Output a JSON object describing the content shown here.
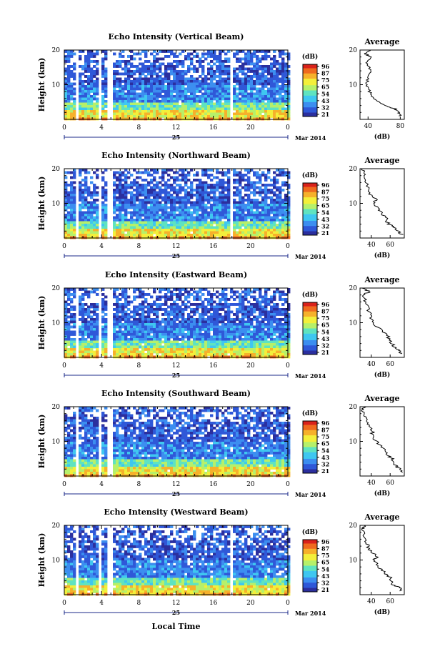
{
  "figure": {
    "bottom_label": "Local Time",
    "date_label": "Mar 2014",
    "day_label": "25",
    "ylabel": "Height (km)",
    "avg_title": "Average",
    "avg_xlabel": "(dB)",
    "colorbar_label": "(dB)",
    "colorbar_ticks": [
      "96",
      "87",
      "75",
      "65",
      "54",
      "43",
      "32",
      "21"
    ],
    "colors": {
      "scale": [
        "#2b2f9e",
        "#2f58d8",
        "#3c8ef0",
        "#3fc7f0",
        "#5fe3c0",
        "#b6f06a",
        "#f3ef3b",
        "#f6b12b",
        "#ef6a1f",
        "#d9221b"
      ]
    }
  },
  "chart_data": [
    {
      "type": "heatmap",
      "title": "Echo Intensity (Vertical Beam)",
      "xlabel": "",
      "ylabel": "Height (km)",
      "xlim": [
        0,
        24
      ],
      "ylim": [
        0,
        20
      ],
      "x_ticks": [
        "0",
        "4",
        "8",
        "12",
        "16",
        "20",
        "0"
      ],
      "y_ticks": [
        "20",
        "10"
      ],
      "colorbar": {
        "label": "(dB)",
        "ticks": [
          96,
          87,
          75,
          65,
          54,
          43,
          32,
          21
        ]
      },
      "data_gaps_hours": [
        [
          1.2,
          1.6
        ],
        [
          3.7,
          4.1
        ],
        [
          4.7,
          5.2
        ],
        [
          17.8,
          18.2
        ]
      ],
      "average_profile": {
        "title": "Average",
        "xlabel": "(dB)",
        "x_ticks": [
          "40",
          "80"
        ],
        "xlim": [
          30,
          85
        ],
        "y_ticks": [
          "20",
          "10"
        ],
        "ylim": [
          0,
          20
        ],
        "points": [
          [
            80,
            1
          ],
          [
            78,
            2
          ],
          [
            74,
            3
          ],
          [
            60,
            4
          ],
          [
            48,
            6
          ],
          [
            42,
            8
          ],
          [
            38,
            10
          ],
          [
            40,
            12
          ],
          [
            45,
            14
          ],
          [
            38,
            16
          ],
          [
            44,
            18
          ],
          [
            36,
            19
          ],
          [
            42,
            20
          ]
        ]
      }
    },
    {
      "type": "heatmap",
      "title": "Echo Intensity (Northward Beam)",
      "xlabel": "",
      "ylabel": "Height (km)",
      "xlim": [
        0,
        24
      ],
      "ylim": [
        0,
        20
      ],
      "x_ticks": [
        "0",
        "4",
        "8",
        "12",
        "16",
        "20",
        "0"
      ],
      "y_ticks": [
        "20",
        "10"
      ],
      "colorbar": {
        "label": "(dB)",
        "ticks": [
          96,
          87,
          75,
          65,
          54,
          43,
          32,
          21
        ]
      },
      "data_gaps_hours": [
        [
          1.2,
          1.6
        ],
        [
          3.7,
          4.1
        ],
        [
          4.7,
          5.2
        ],
        [
          17.8,
          18.2
        ]
      ],
      "average_profile": {
        "title": "Average",
        "xlabel": "(dB)",
        "x_ticks": [
          "40",
          "60"
        ],
        "xlim": [
          28,
          75
        ],
        "y_ticks": [
          "20",
          "10"
        ],
        "ylim": [
          0,
          20
        ],
        "points": [
          [
            72,
            1
          ],
          [
            68,
            2
          ],
          [
            66,
            3
          ],
          [
            58,
            4
          ],
          [
            55,
            6
          ],
          [
            48,
            8
          ],
          [
            42,
            10
          ],
          [
            45,
            11
          ],
          [
            38,
            13
          ],
          [
            35,
            16
          ],
          [
            33,
            18
          ],
          [
            30,
            20
          ]
        ]
      }
    },
    {
      "type": "heatmap",
      "title": "Echo Intensity (Eastward Beam)",
      "xlabel": "",
      "ylabel": "Height (km)",
      "xlim": [
        0,
        24
      ],
      "ylim": [
        0,
        20
      ],
      "x_ticks": [
        "0",
        "4",
        "8",
        "12",
        "16",
        "20",
        "0"
      ],
      "y_ticks": [
        "20",
        "10"
      ],
      "colorbar": {
        "label": "(dB)",
        "ticks": [
          96,
          87,
          75,
          65,
          54,
          43,
          32,
          21
        ]
      },
      "data_gaps_hours": [
        [
          1.2,
          1.6
        ],
        [
          3.7,
          4.1
        ],
        [
          4.7,
          5.2
        ]
      ],
      "average_profile": {
        "title": "Average",
        "xlabel": "(dB)",
        "x_ticks": [
          "40",
          "60"
        ],
        "xlim": [
          28,
          75
        ],
        "y_ticks": [
          "20",
          "10"
        ],
        "ylim": [
          0,
          20
        ],
        "points": [
          [
            72,
            1
          ],
          [
            70,
            2
          ],
          [
            64,
            3
          ],
          [
            60,
            5
          ],
          [
            55,
            7
          ],
          [
            45,
            9
          ],
          [
            40,
            11
          ],
          [
            38,
            13
          ],
          [
            34,
            16
          ],
          [
            32,
            18
          ],
          [
            38,
            19
          ],
          [
            30,
            20
          ]
        ]
      }
    },
    {
      "type": "heatmap",
      "title": "Echo Intensity (Southward Beam)",
      "xlabel": "",
      "ylabel": "Height (km)",
      "xlim": [
        0,
        24
      ],
      "ylim": [
        0,
        20
      ],
      "x_ticks": [
        "0",
        "4",
        "8",
        "12",
        "16",
        "20",
        "0"
      ],
      "y_ticks": [
        "20",
        "10"
      ],
      "colorbar": {
        "label": "(dB)",
        "ticks": [
          96,
          87,
          75,
          65,
          54,
          43,
          32,
          21
        ]
      },
      "data_gaps_hours": [
        [
          1.2,
          1.6
        ],
        [
          3.7,
          4.1
        ],
        [
          4.7,
          5.2
        ]
      ],
      "average_profile": {
        "title": "Average",
        "xlabel": "(dB)",
        "x_ticks": [
          "40",
          "60"
        ],
        "xlim": [
          28,
          75
        ],
        "y_ticks": [
          "20",
          "10"
        ],
        "ylim": [
          0,
          20
        ],
        "points": [
          [
            72,
            1
          ],
          [
            70,
            2
          ],
          [
            66,
            3
          ],
          [
            62,
            5
          ],
          [
            58,
            6
          ],
          [
            52,
            8
          ],
          [
            45,
            10
          ],
          [
            40,
            12
          ],
          [
            42,
            13
          ],
          [
            36,
            15
          ],
          [
            34,
            17
          ],
          [
            30,
            19
          ],
          [
            32,
            20
          ]
        ]
      }
    },
    {
      "type": "heatmap",
      "title": "Echo Intensity (Westward Beam)",
      "xlabel": "",
      "ylabel": "Height (km)",
      "xlim": [
        0,
        24
      ],
      "ylim": [
        0,
        20
      ],
      "x_ticks": [
        "0",
        "4",
        "8",
        "12",
        "16",
        "20",
        "0"
      ],
      "y_ticks": [
        "20",
        "10"
      ],
      "colorbar": {
        "label": "(dB)",
        "ticks": [
          96,
          87,
          75,
          65,
          54,
          43,
          32,
          21
        ]
      },
      "data_gaps_hours": [
        [
          1.2,
          1.6
        ],
        [
          3.7,
          4.1
        ],
        [
          4.7,
          5.2
        ],
        [
          17.8,
          18.2
        ]
      ],
      "average_profile": {
        "title": "Average",
        "xlabel": "(dB)",
        "x_ticks": [
          "40",
          "60"
        ],
        "xlim": [
          28,
          75
        ],
        "y_ticks": [
          "20",
          "10"
        ],
        "ylim": [
          0,
          20
        ],
        "points": [
          [
            72,
            1
          ],
          [
            70,
            2
          ],
          [
            62,
            3
          ],
          [
            60,
            5
          ],
          [
            55,
            6
          ],
          [
            48,
            8
          ],
          [
            42,
            10
          ],
          [
            46,
            11
          ],
          [
            38,
            13
          ],
          [
            35,
            15
          ],
          [
            33,
            17
          ],
          [
            31,
            19
          ],
          [
            34,
            20
          ]
        ]
      }
    }
  ]
}
